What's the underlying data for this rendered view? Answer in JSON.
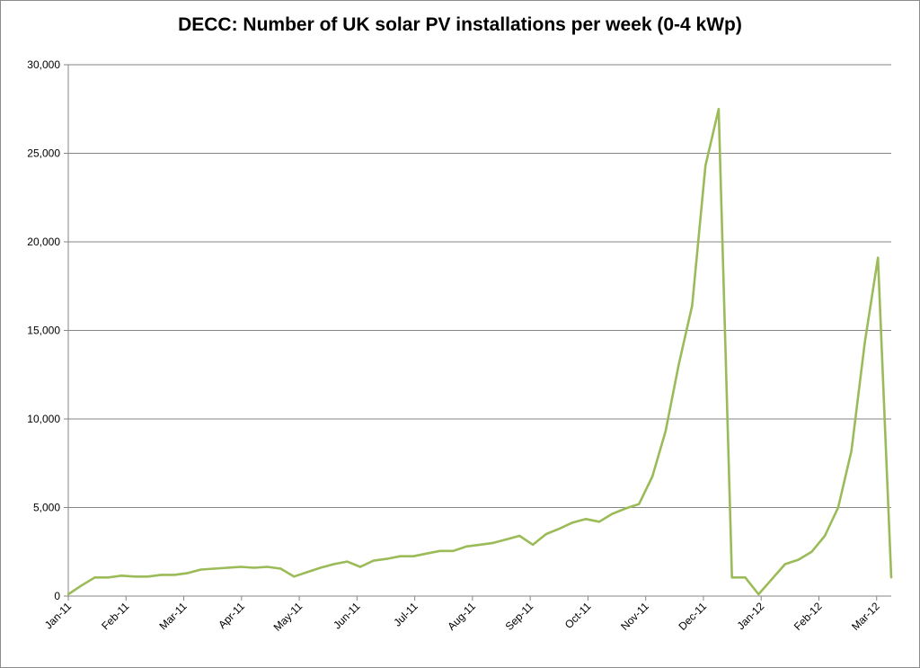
{
  "chart_data": {
    "type": "line",
    "title": "DECC: Number of UK solar PV installations per week (0-4 kWp)",
    "xlabel": "",
    "ylabel": "",
    "ylim": [
      0,
      30000
    ],
    "y_ticks": [
      0,
      5000,
      10000,
      15000,
      20000,
      25000,
      30000
    ],
    "y_tick_labels": [
      "0",
      "5,000",
      "10,000",
      "15,000",
      "20,000",
      "25,000",
      "30,000"
    ],
    "x_tick_labels": [
      "Jan-11",
      "Feb-11",
      "Mar-11",
      "Apr-11",
      "May-11",
      "Jun-11",
      "Jul-11",
      "Aug-11",
      "Sep-11",
      "Oct-11",
      "Nov-11",
      "Dec-11",
      "Jan-12",
      "Feb-12",
      "Mar-12"
    ],
    "grid": "horizontal",
    "legend": "none",
    "series_color": "#9bbb59",
    "series": [
      {
        "values": [
          100,
          600,
          1050,
          1050,
          1150,
          1100,
          1100,
          1200,
          1200,
          1300,
          1500,
          1550,
          1600,
          1650,
          1600,
          1650,
          1550,
          1100,
          1350,
          1600,
          1800,
          1950,
          1650,
          2000,
          2100,
          2250,
          2250,
          2400,
          2550,
          2550,
          2800,
          2900,
          3000,
          3200,
          3400,
          2900,
          3500,
          3800,
          4150,
          4350,
          4200,
          4650,
          4950,
          5200,
          6750,
          9300,
          13100,
          16400,
          24300,
          27500,
          1050,
          1050,
          100,
          950,
          1800,
          2050,
          2500,
          3400,
          5000,
          8200,
          14300,
          19100,
          1050
        ]
      }
    ]
  }
}
